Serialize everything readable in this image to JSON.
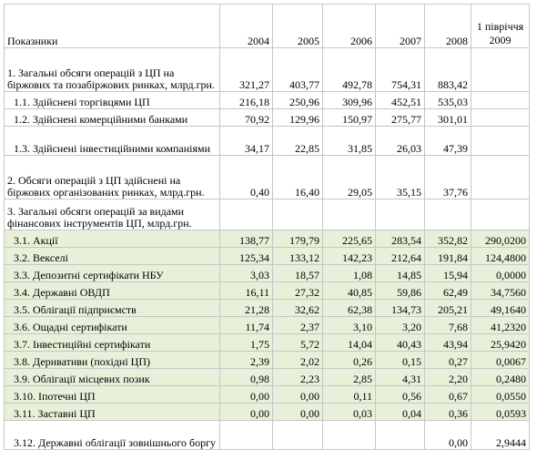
{
  "header": {
    "label": "Показники",
    "years": [
      "2004",
      "2005",
      "2006",
      "2007",
      "2008",
      "1 півріччя 2009"
    ]
  },
  "rows": [
    {
      "label": "1. Загальні обсяги операцій з ЦП на біржових та позабіржових ринках, млрд.грн.",
      "values": [
        "321,27",
        "403,77",
        "492,78",
        "754,31",
        "883,42",
        ""
      ]
    },
    {
      "label": "1.1. Здійснені торгівцями ЦП",
      "values": [
        "216,18",
        "250,96",
        "309,96",
        "452,51",
        "535,03",
        ""
      ]
    },
    {
      "label": "1.2. Здійснені комерційними банками",
      "values": [
        "70,92",
        "129,96",
        "150,97",
        "275,77",
        "301,01",
        ""
      ]
    },
    {
      "label": "1.3. Здійснені інвестиційними компаніями",
      "values": [
        "34,17",
        "22,85",
        "31,85",
        "26,03",
        "47,39",
        ""
      ]
    },
    {
      "label": "2. Обсяги операцій з ЦП здійснені на біржових організованих ринках, млрд.грн.",
      "values": [
        "0,40",
        "16,40",
        "29,05",
        "35,15",
        "37,76",
        ""
      ]
    },
    {
      "label": "3. Загальні обсяги операцій за видами фінансових інструментів ЦП, млрд.грн.",
      "values": [
        "",
        "",
        "",
        "",
        "",
        ""
      ]
    },
    {
      "label": "3.1. Акції",
      "values": [
        "138,77",
        "179,79",
        "225,65",
        "283,54",
        "352,82",
        "290,0200"
      ]
    },
    {
      "label": "3.2. Векселі",
      "values": [
        "125,34",
        "133,12",
        "142,23",
        "212,64",
        "191,84",
        "124,4800"
      ]
    },
    {
      "label": "3.3. Депозитні сертифікати НБУ",
      "values": [
        "3,03",
        "18,57",
        "1,08",
        "14,85",
        "15,94",
        "0,0000"
      ]
    },
    {
      "label": "3.4. Державні ОВДП",
      "values": [
        "16,11",
        "27,32",
        "40,85",
        "59,86",
        "62,49",
        "34,7560"
      ]
    },
    {
      "label": "3.5. Облігації підприємств",
      "values": [
        "21,28",
        "32,62",
        "62,38",
        "134,73",
        "205,21",
        "49,1640"
      ]
    },
    {
      "label": "3.6. Ощадні сертифікати",
      "values": [
        "11,74",
        "2,37",
        "3,10",
        "3,20",
        "7,68",
        "41,2320"
      ]
    },
    {
      "label": "3.7. Інвестиційні сертифікати",
      "values": [
        "1,75",
        "5,72",
        "14,04",
        "40,43",
        "43,94",
        "25,9420"
      ]
    },
    {
      "label": "3.8. Деривативи (похідні ЦП)",
      "values": [
        "2,39",
        "2,02",
        "0,26",
        "0,15",
        "0,27",
        "0,0067"
      ]
    },
    {
      "label": "3.9. Облігації місцевих позик",
      "values": [
        "0,98",
        "2,23",
        "2,85",
        "4,31",
        "2,20",
        "0,2480"
      ]
    },
    {
      "label": "3.10. Іпотечні ЦП",
      "values": [
        "0,00",
        "0,00",
        "0,11",
        "0,56",
        "0,67",
        "0,0550"
      ]
    },
    {
      "label": "3.11. Заставні ЦП",
      "values": [
        "0,00",
        "0,00",
        "0,03",
        "0,04",
        "0,36",
        "0,0593"
      ]
    },
    {
      "label": "3.12. Державні облігації зовнішнього боргу",
      "values": [
        "",
        "",
        "",
        "",
        "0,00",
        "2,9444"
      ]
    }
  ]
}
